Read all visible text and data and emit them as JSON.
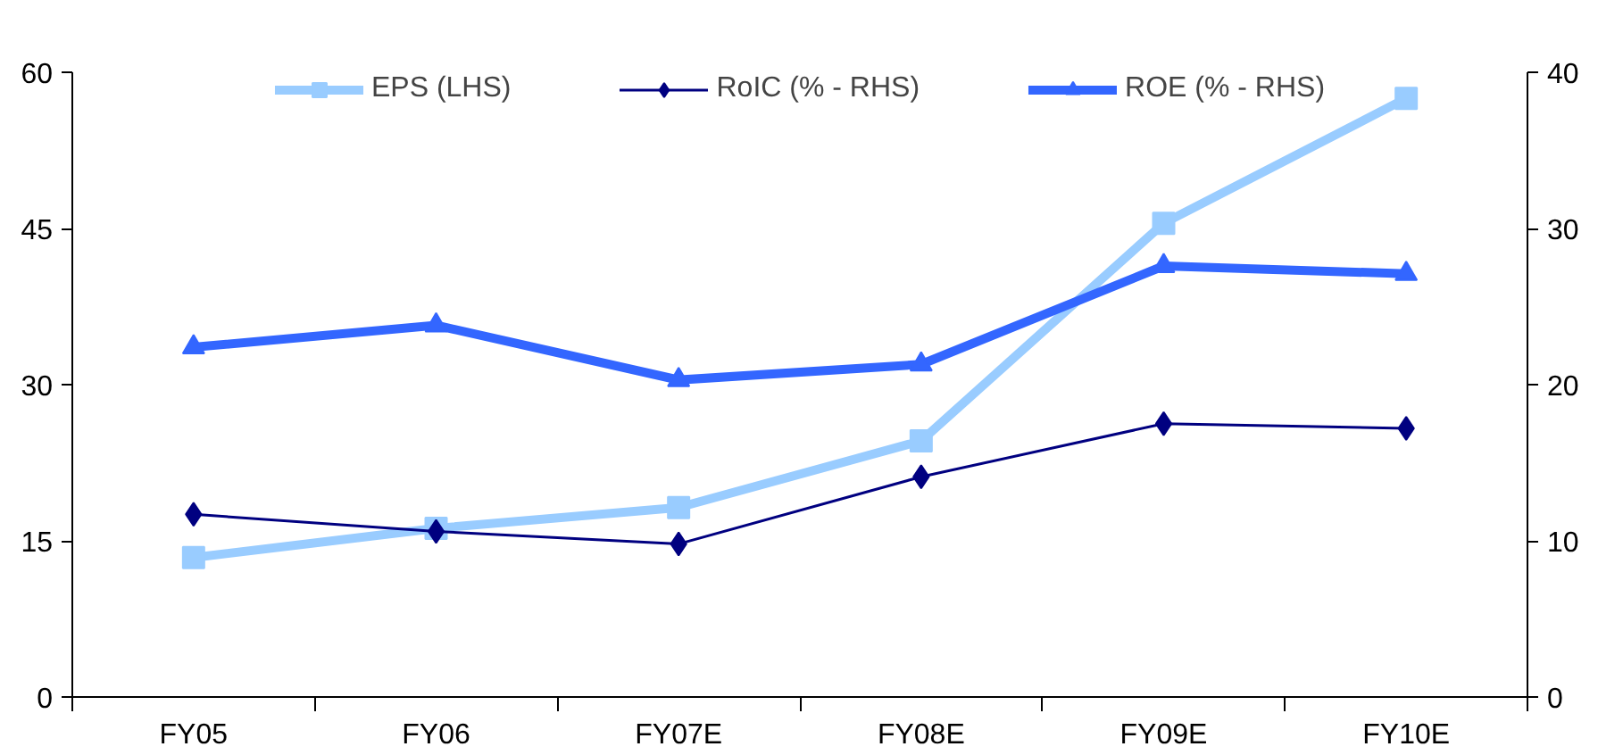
{
  "chart_data": {
    "type": "line",
    "categories": [
      "FY05",
      "FY06",
      "FY07E",
      "FY08E",
      "FY09E",
      "FY10E"
    ],
    "series": [
      {
        "name": "EPS (LHS)",
        "color": "#99ccff",
        "marker": "square",
        "values": [
          13.4,
          16.2,
          18.2,
          24.6,
          45.5,
          57.5
        ]
      },
      {
        "name": "RoIC (% - RHS)",
        "color": "#000080",
        "marker": "diamond",
        "axis": "y2",
        "values": [
          11.7,
          10.6,
          9.8,
          14.1,
          17.5,
          17.2
        ]
      },
      {
        "name": "ROE (% - RHS)",
        "color": "#3366ff",
        "marker": "triangle",
        "axis": "y2",
        "values": [
          22.4,
          23.8,
          20.3,
          21.3,
          27.6,
          27.1
        ]
      }
    ],
    "ylim": [
      0,
      60
    ],
    "yticks": [
      0,
      15,
      30,
      45,
      60
    ],
    "y2lim": [
      0,
      40
    ],
    "y2ticks": [
      0,
      10,
      20,
      30,
      40
    ],
    "grid": false,
    "legend": "top"
  }
}
